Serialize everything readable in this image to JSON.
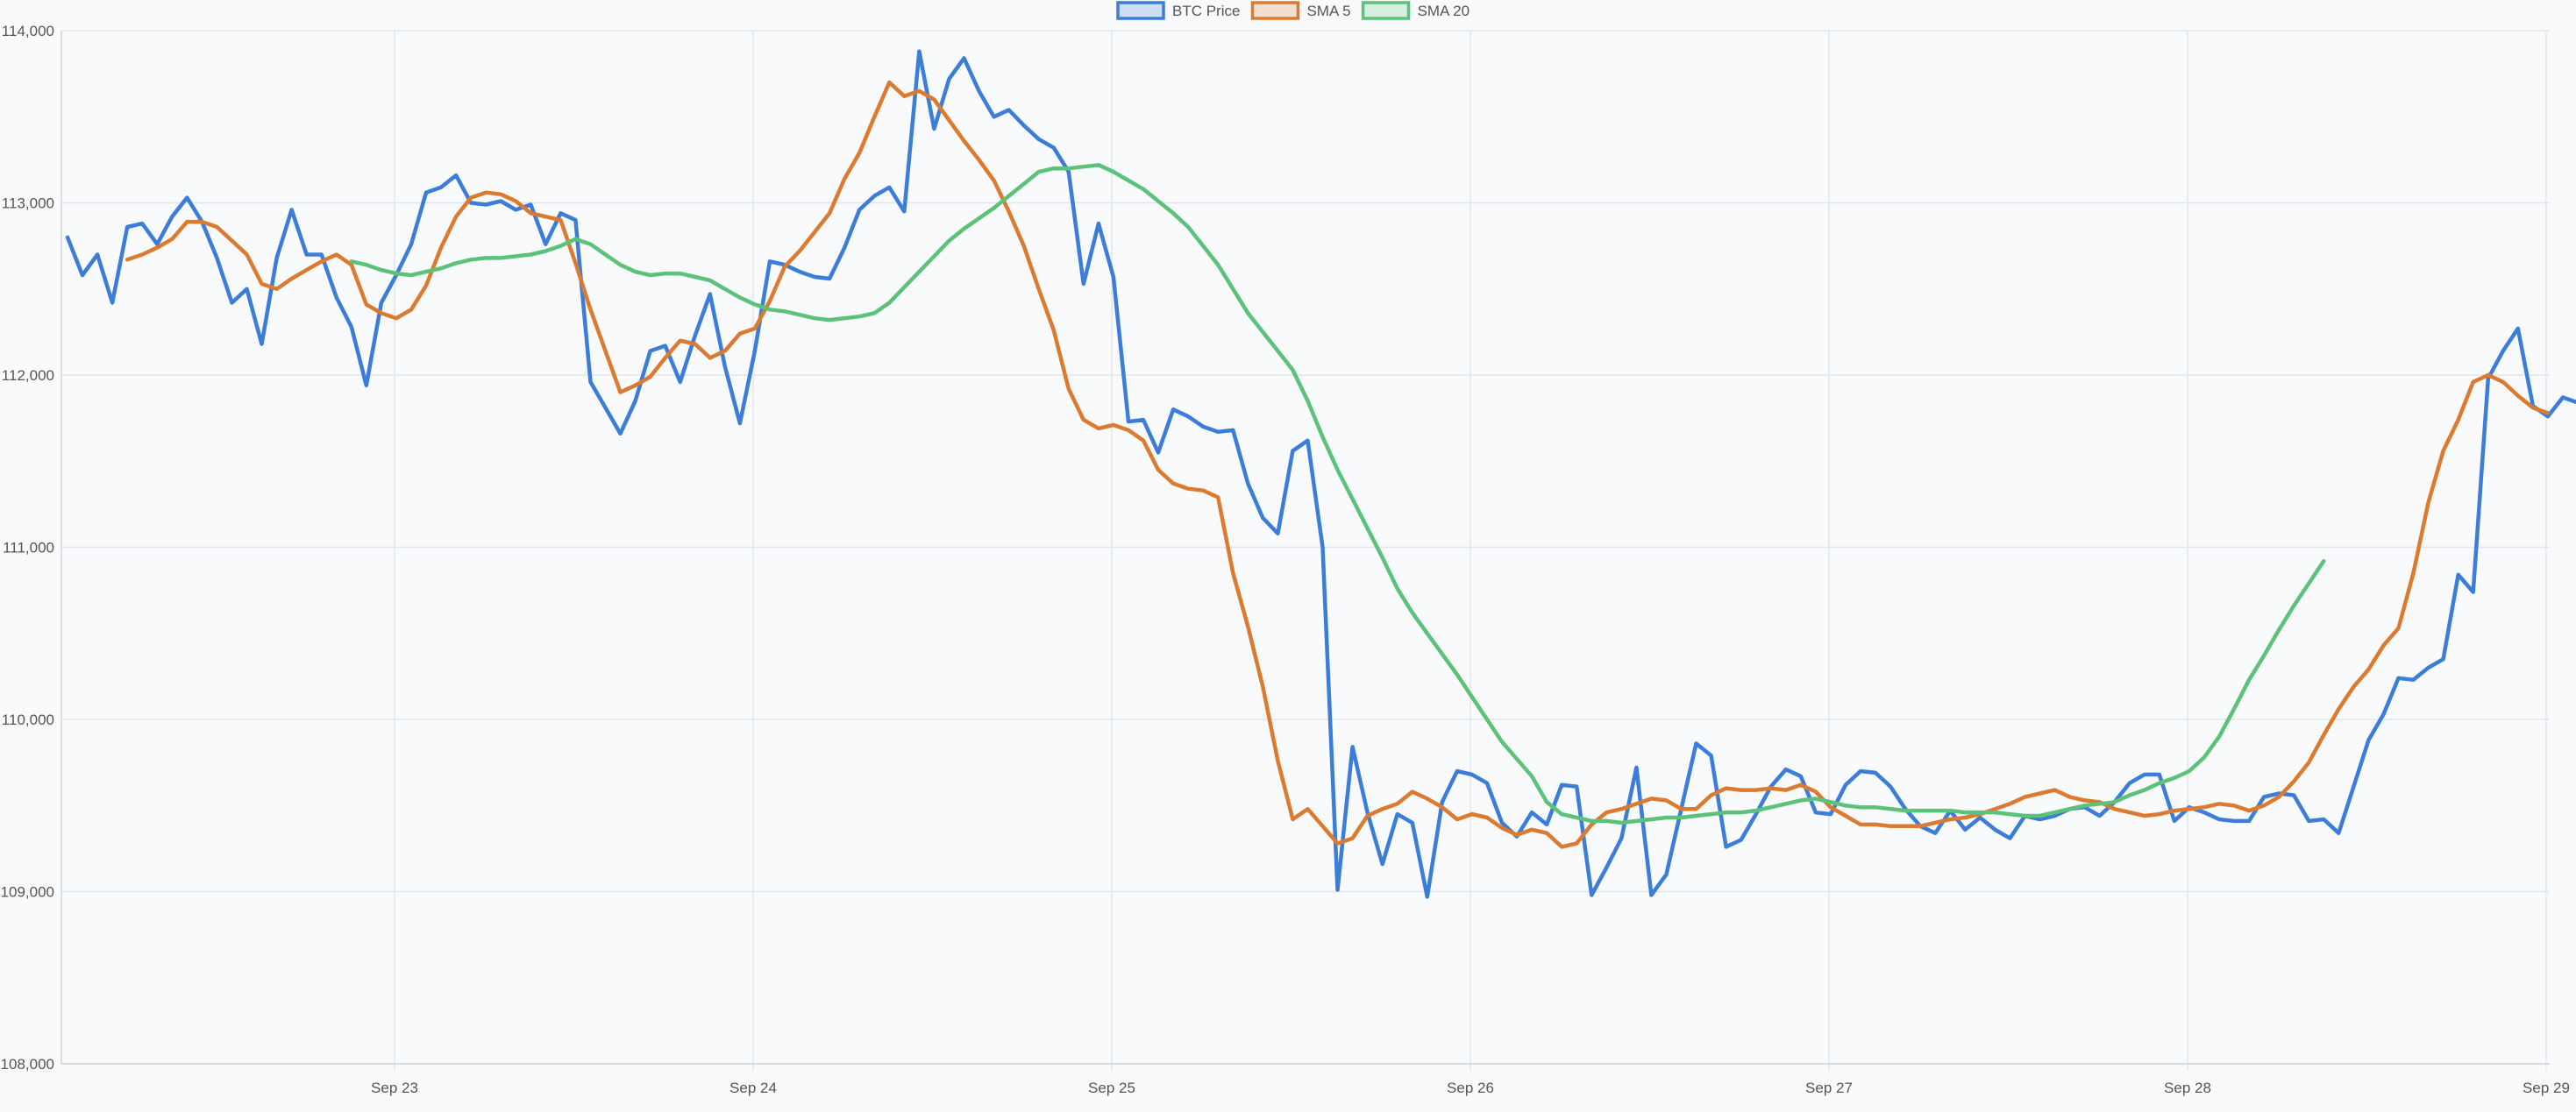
{
  "chart_data": {
    "type": "line",
    "legend_position": "top-center",
    "grid": true,
    "x_ticks": [
      "Sep 23",
      "Sep 24",
      "Sep 25",
      "Sep 26",
      "Sep 27",
      "Sep 28",
      "Sep 29"
    ],
    "y_ticks": [
      "108,000",
      "109,000",
      "110,000",
      "111,000",
      "112,000",
      "113,000",
      "114,000"
    ],
    "ylim": [
      108000,
      114000
    ],
    "xlim": [
      "Sep 22 03:00",
      "Sep 29 01:00"
    ],
    "x_step_hours": 1,
    "series": [
      {
        "name": "BTC Price",
        "color": "#3b7dd8",
        "start_index": 0,
        "values": [
          112800,
          112580,
          112700,
          112420,
          112860,
          112880,
          112760,
          112920,
          113030,
          112890,
          112680,
          112420,
          112500,
          112180,
          112680,
          112960,
          112700,
          112700,
          112450,
          112280,
          111940,
          112420,
          112580,
          112760,
          113060,
          113090,
          113160,
          113000,
          112990,
          113010,
          112960,
          112990,
          112760,
          112940,
          112900,
          111960,
          111810,
          111660,
          111850,
          112140,
          112170,
          111960,
          112230,
          112470,
          112050,
          111720,
          112140,
          112660,
          112640,
          112600,
          112570,
          112560,
          112740,
          112960,
          113040,
          113090,
          112950,
          113880,
          113430,
          113720,
          113840,
          113650,
          113500,
          113540,
          113450,
          113370,
          113320,
          113180,
          112530,
          112880,
          112570,
          111730,
          111740,
          111550,
          111800,
          111760,
          111700,
          111670,
          111680,
          111370,
          111170,
          111080,
          111560,
          111620,
          111000,
          109010,
          109840,
          109460,
          109160,
          109450,
          109400,
          108970,
          109520,
          109700,
          109680,
          109630,
          109400,
          109320,
          109460,
          109390,
          109620,
          109610,
          108980,
          109140,
          109310,
          109720,
          108980,
          109100,
          109480,
          109860,
          109790,
          109260,
          109300,
          109450,
          109610,
          109710,
          109670,
          109460,
          109450,
          109620,
          109700,
          109690,
          109610,
          109480,
          109380,
          109340,
          109470,
          109360,
          109430,
          109360,
          109310,
          109440,
          109420,
          109440,
          109480,
          109490,
          109440,
          109520,
          109630,
          109680,
          109680,
          109410,
          109490,
          109460,
          109420,
          109410,
          109410,
          109550,
          109570,
          109560,
          109410,
          109420,
          109340,
          109610,
          109880,
          110030,
          110240,
          110230,
          110300,
          110350,
          110840,
          110740,
          111980,
          112140,
          112270,
          111820,
          111760,
          111870,
          111840,
          111770,
          111700
        ]
      },
      {
        "name": "SMA 5",
        "color": "#dc7a30",
        "start_index": 4,
        "values": [
          112670,
          112700,
          112740,
          112790,
          112890,
          112890,
          112860,
          112780,
          112700,
          112530,
          112500,
          112560,
          112610,
          112660,
          112700,
          112640,
          112410,
          112360,
          112330,
          112380,
          112520,
          112740,
          112920,
          113030,
          113060,
          113050,
          113010,
          112940,
          112920,
          112900,
          112650,
          112380,
          112140,
          111900,
          111940,
          111990,
          112100,
          112200,
          112180,
          112100,
          112140,
          112240,
          112270,
          112430,
          112630,
          112720,
          112830,
          112940,
          113140,
          113290,
          113500,
          113700,
          113620,
          113650,
          113600,
          113480,
          113360,
          113250,
          113130,
          112950,
          112750,
          112500,
          112260,
          111920,
          111740,
          111690,
          111710,
          111680,
          111620,
          111450,
          111370,
          111340,
          111330,
          111290,
          110850,
          110540,
          110190,
          109760,
          109420,
          109480,
          109380,
          109280,
          109310,
          109440,
          109480,
          109510,
          109580,
          109540,
          109490,
          109420,
          109450,
          109430,
          109370,
          109330,
          109360,
          109340,
          109260,
          109280,
          109390,
          109460,
          109480,
          109510,
          109540,
          109530,
          109480,
          109480,
          109560,
          109600,
          109590,
          109590,
          109600,
          109590,
          109620,
          109580,
          109490,
          109440,
          109390,
          109390,
          109380,
          109380,
          109380,
          109400,
          109420,
          109430,
          109450,
          109480,
          109510,
          109550,
          109570,
          109590,
          109550,
          109530,
          109520,
          109480,
          109460,
          109440,
          109450,
          109470,
          109480,
          109490,
          109510,
          109500,
          109470,
          109500,
          109550,
          109640,
          109750,
          109910,
          110060,
          110190,
          110290,
          110430,
          110530,
          110850,
          111260,
          111560,
          111740,
          111960,
          112000,
          111960,
          111880,
          111810,
          111780
        ]
      },
      {
        "name": "SMA 20",
        "color": "#5cc279",
        "start_index": 19,
        "values": [
          112660,
          112640,
          112610,
          112590,
          112580,
          112600,
          112620,
          112650,
          112670,
          112680,
          112680,
          112690,
          112700,
          112720,
          112750,
          112790,
          112760,
          112700,
          112640,
          112600,
          112580,
          112590,
          112590,
          112570,
          112550,
          112500,
          112450,
          112410,
          112380,
          112370,
          112350,
          112330,
          112320,
          112330,
          112340,
          112360,
          112420,
          112510,
          112600,
          112690,
          112780,
          112850,
          112910,
          112970,
          113040,
          113110,
          113180,
          113200,
          113200,
          113210,
          113220,
          113180,
          113130,
          113080,
          113010,
          112940,
          112860,
          112750,
          112640,
          112500,
          112360,
          112250,
          112140,
          112030,
          111850,
          111640,
          111450,
          111280,
          111110,
          110940,
          110760,
          110620,
          110500,
          110380,
          110260,
          110130,
          110000,
          109870,
          109770,
          109670,
          109520,
          109450,
          109430,
          109410,
          109410,
          109400,
          109410,
          109420,
          109430,
          109430,
          109440,
          109450,
          109460,
          109460,
          109470,
          109490,
          109510,
          109530,
          109540,
          109520,
          109500,
          109490,
          109490,
          109480,
          109470,
          109470,
          109470,
          109470,
          109460,
          109460,
          109460,
          109450,
          109440,
          109440,
          109460,
          109480,
          109500,
          109510,
          109520,
          109560,
          109590,
          109630,
          109660,
          109700,
          109780,
          109900,
          110060,
          110230,
          110370,
          110520,
          110660,
          110790,
          110920
        ]
      }
    ]
  }
}
